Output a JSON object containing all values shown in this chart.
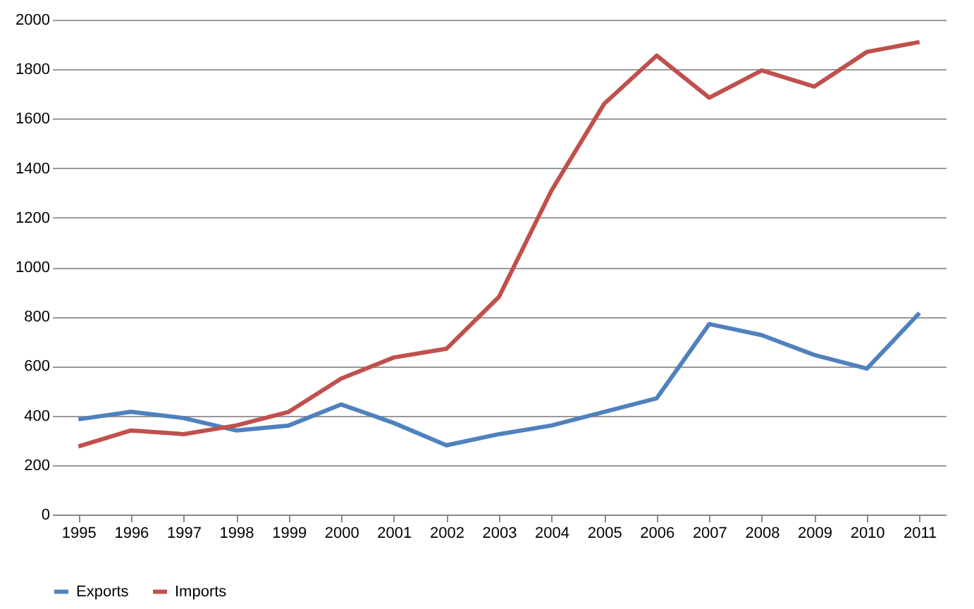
{
  "chart_data": {
    "type": "line",
    "categories": [
      "1995",
      "1996",
      "1997",
      "1998",
      "1999",
      "2000",
      "2001",
      "2002",
      "2003",
      "2004",
      "2005",
      "2006",
      "2007",
      "2008",
      "2009",
      "2010",
      "2011"
    ],
    "series": [
      {
        "name": "Exports",
        "color": "#4f81bd",
        "values": [
          385,
          415,
          390,
          340,
          360,
          445,
          370,
          280,
          325,
          360,
          415,
          470,
          770,
          725,
          645,
          590,
          815
        ]
      },
      {
        "name": "Imports",
        "color": "#c0504d",
        "values": [
          275,
          340,
          325,
          360,
          415,
          550,
          635,
          670,
          880,
          1310,
          1660,
          1855,
          1685,
          1795,
          1730,
          1870,
          1910
        ]
      }
    ],
    "ylim": [
      0,
      2000
    ],
    "yticks": [
      0,
      200,
      400,
      600,
      800,
      1000,
      1200,
      1400,
      1600,
      1800,
      2000
    ],
    "grid": "y",
    "legend": "bottom",
    "marker": "none",
    "line_style": "solid"
  }
}
